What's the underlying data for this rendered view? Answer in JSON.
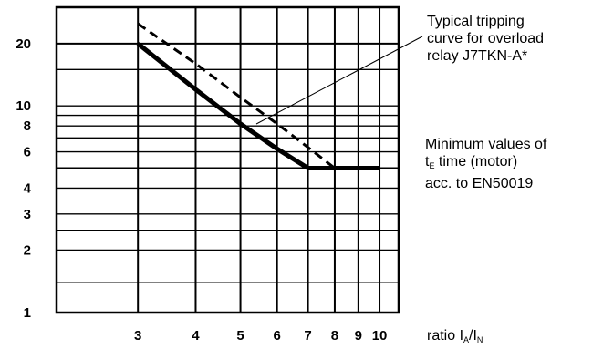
{
  "chart_data": {
    "type": "line",
    "x_scale": "log",
    "y_scale": "log",
    "xlim": [
      2,
      11
    ],
    "ylim": [
      1,
      30
    ],
    "x_ticks": [
      3,
      4,
      5,
      6,
      7,
      8,
      9,
      10
    ],
    "x_tick_labels": [
      "3",
      "4",
      "5",
      "6",
      "7",
      "8",
      "9",
      "10"
    ],
    "y_ticks": [
      1,
      2,
      3,
      4,
      6,
      8,
      10,
      20
    ],
    "y_tick_labels": [
      "1",
      "2",
      "3",
      "4",
      "6",
      "8",
      "10",
      "20"
    ],
    "h_gridlines": [
      1.4,
      2,
      2.5,
      3,
      4,
      5,
      6,
      7,
      8,
      9,
      10,
      15,
      20
    ],
    "v_gridlines": [
      3,
      4,
      5,
      6,
      7,
      8,
      9,
      10
    ],
    "series": [
      {
        "name": "Typical tripping curve for overload relay J7TKN-A*",
        "style": "dashed",
        "x": [
          3,
          4,
          5,
          6,
          7,
          8
        ],
        "y": [
          25,
          16,
          11,
          8.2,
          6.3,
          5
        ]
      },
      {
        "name": "Minimum values of tE time (motor) acc. to EN50019",
        "style": "solid-thick",
        "x": [
          3,
          4,
          5,
          6,
          7,
          8,
          9,
          10
        ],
        "y": [
          20,
          12,
          8.2,
          6.2,
          5,
          5,
          5,
          5
        ]
      }
    ],
    "xlabel_prefix": "ratio I",
    "xlabel_sub1": "A",
    "xlabel_mid": "/I",
    "xlabel_sub2": "N"
  },
  "annotations": {
    "tripping_curve": [
      "Typical tripping",
      "curve for overload",
      "relay J7TKN-A*"
    ],
    "minimum_values_line1": "Minimum values of",
    "minimum_values_t": "t",
    "minimum_values_sub": "E",
    "minimum_values_line2_rest": " time (motor)",
    "minimum_values_line3": "acc. to EN50019"
  },
  "colors": {
    "line": "#000000",
    "background": "#ffffff"
  }
}
